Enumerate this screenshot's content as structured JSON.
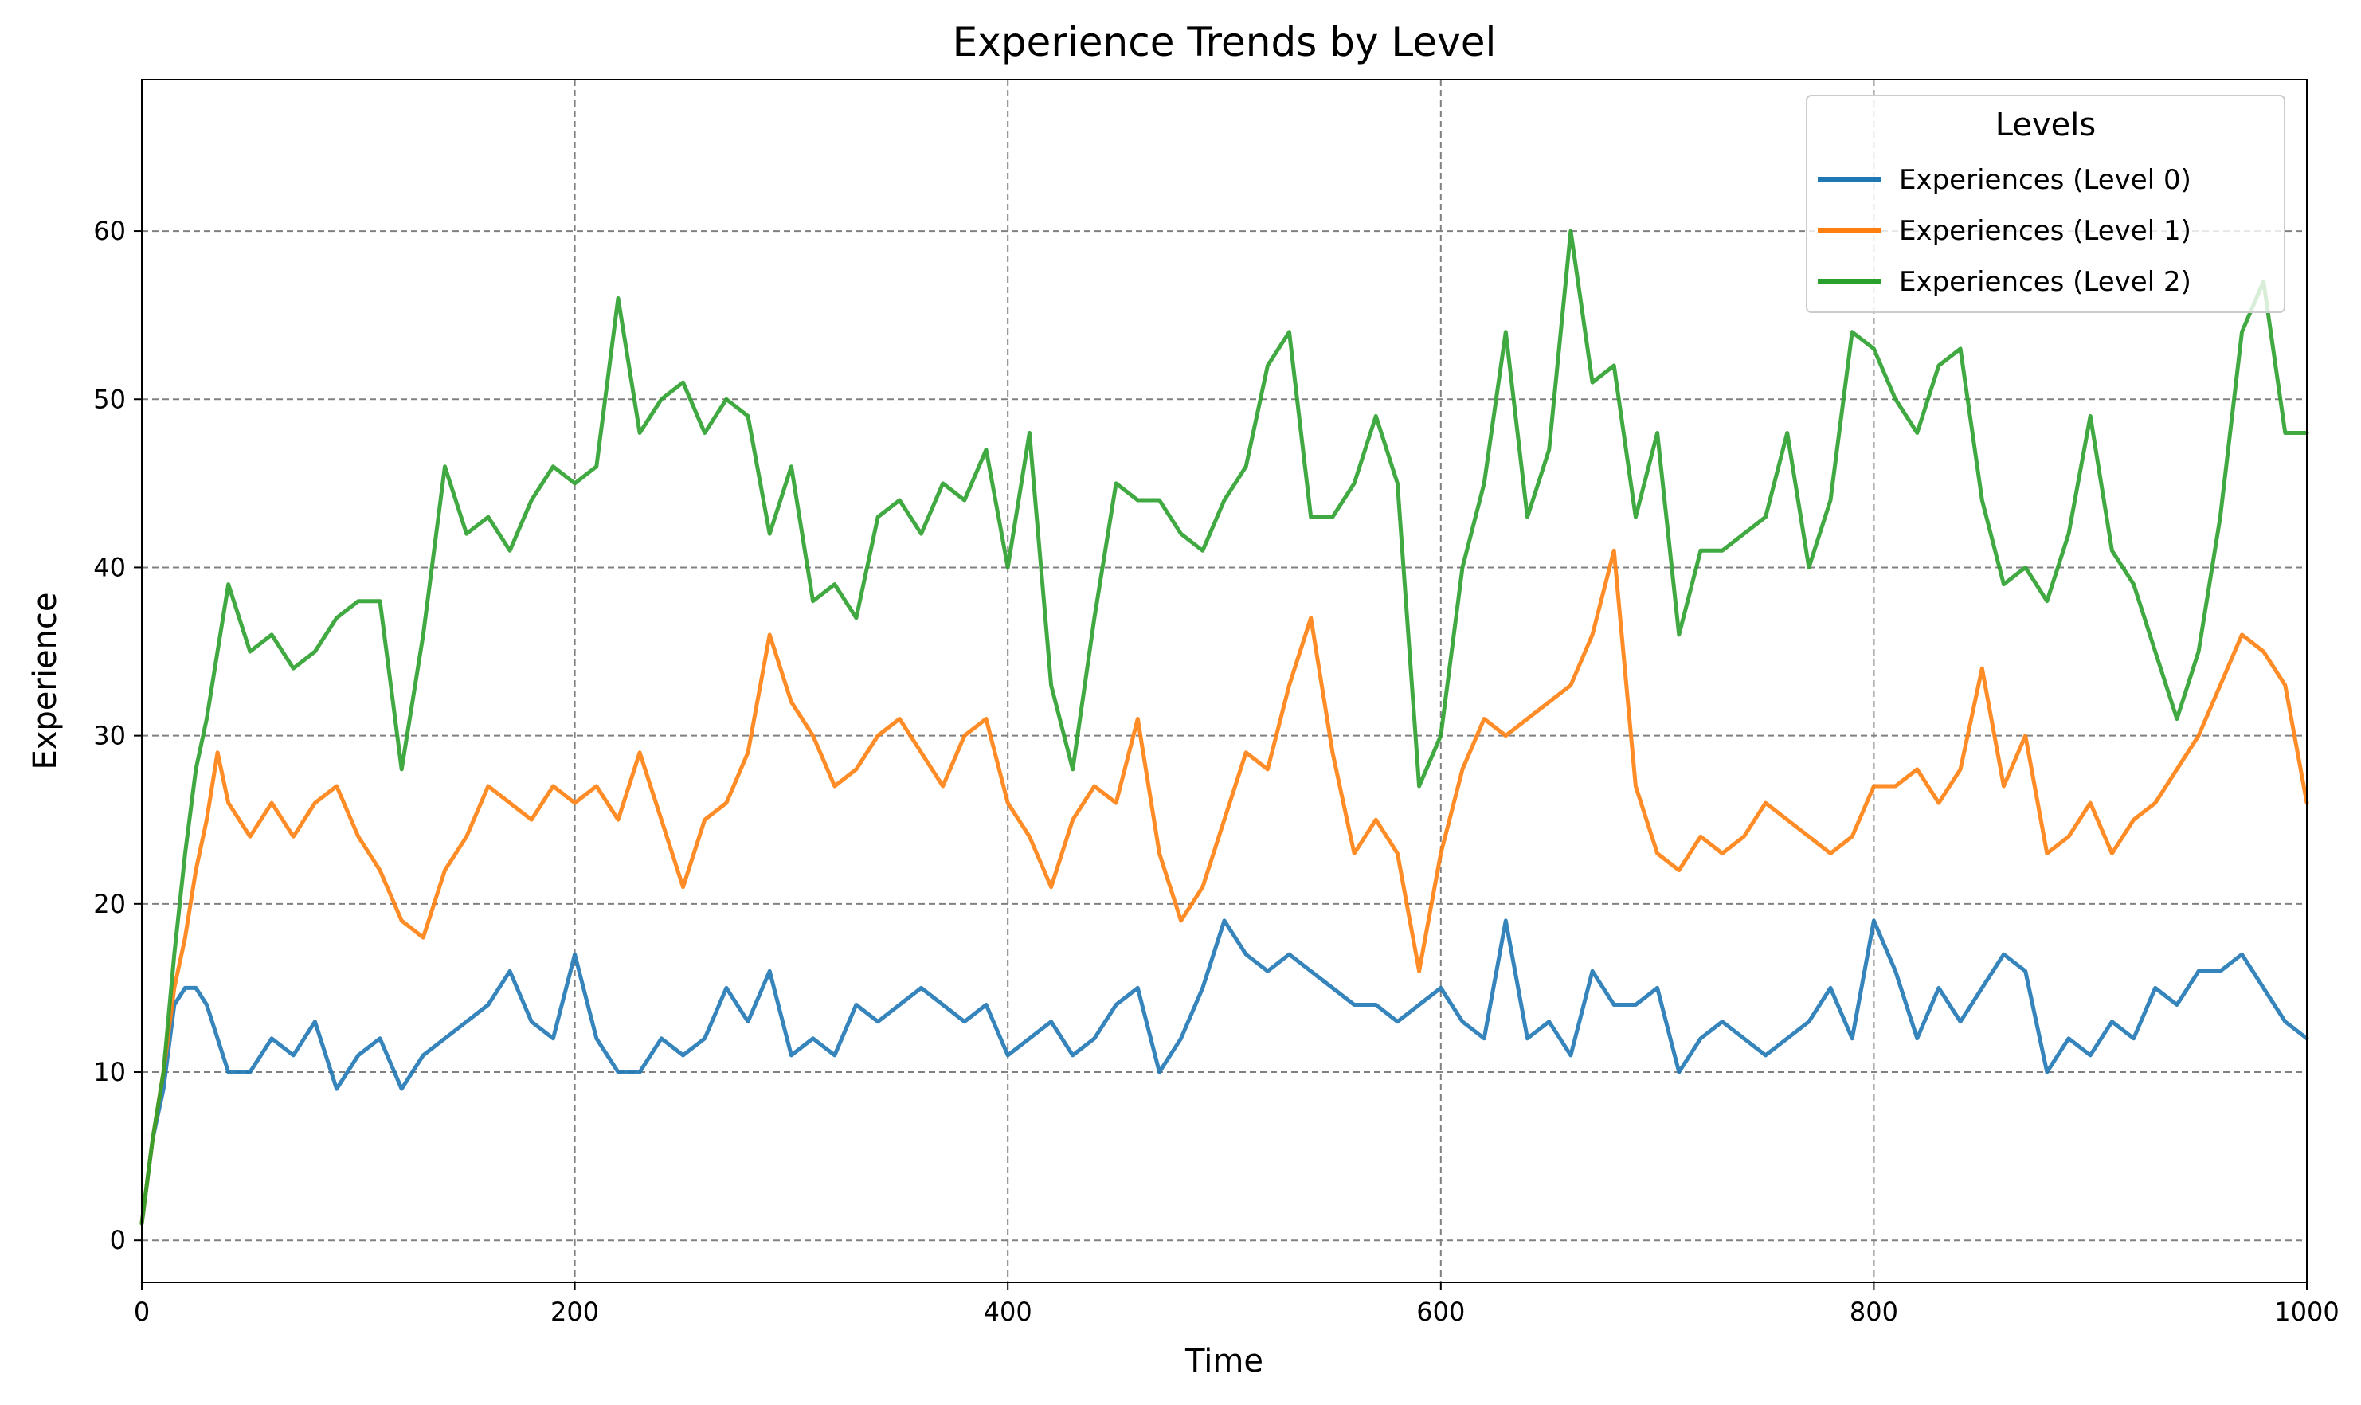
{
  "chart_data": {
    "type": "line",
    "title": "Experience Trends by Level",
    "xlabel": "Time",
    "ylabel": "Experience",
    "xlim": [
      0,
      1000
    ],
    "ylim": [
      -2.5,
      69
    ],
    "xticks": [
      0,
      200,
      400,
      600,
      800,
      1000
    ],
    "yticks": [
      0,
      10,
      20,
      30,
      40,
      50,
      60
    ],
    "grid": true,
    "legend": {
      "title": "Levels",
      "position": "top-right"
    },
    "series": [
      {
        "name": "Experiences (Level 0)",
        "color": "#1f77b4",
        "x": [
          0,
          5,
          10,
          15,
          20,
          25,
          30,
          40,
          50,
          60,
          70,
          80,
          90,
          100,
          110,
          120,
          130,
          140,
          150,
          160,
          170,
          180,
          190,
          200,
          210,
          220,
          230,
          240,
          250,
          260,
          270,
          280,
          290,
          300,
          310,
          320,
          330,
          340,
          350,
          360,
          370,
          380,
          390,
          400,
          410,
          420,
          430,
          440,
          450,
          460,
          470,
          480,
          490,
          500,
          510,
          520,
          530,
          540,
          550,
          560,
          570,
          580,
          590,
          600,
          610,
          620,
          630,
          640,
          650,
          660,
          670,
          680,
          690,
          700,
          710,
          720,
          730,
          740,
          750,
          760,
          770,
          780,
          790,
          800,
          810,
          820,
          830,
          840,
          850,
          860,
          870,
          880,
          890,
          900,
          910,
          920,
          930,
          940,
          950,
          960,
          970,
          980,
          990,
          1000
        ],
        "values": [
          1,
          6,
          9,
          14,
          15,
          15,
          14,
          10,
          10,
          12,
          11,
          13,
          9,
          11,
          12,
          9,
          11,
          12,
          13,
          14,
          16,
          13,
          12,
          17,
          12,
          10,
          10,
          12,
          11,
          12,
          15,
          13,
          16,
          11,
          12,
          11,
          14,
          13,
          14,
          15,
          14,
          13,
          14,
          11,
          12,
          13,
          11,
          12,
          14,
          15,
          10,
          12,
          15,
          19,
          17,
          16,
          17,
          16,
          15,
          14,
          14,
          13,
          14,
          15,
          13,
          12,
          19,
          12,
          13,
          11,
          16,
          14,
          14,
          15,
          10,
          12,
          13,
          12,
          11,
          12,
          13,
          15,
          12,
          19,
          16,
          12,
          15,
          13,
          15,
          17,
          16,
          10,
          12,
          11,
          13,
          12,
          15,
          14,
          16,
          16,
          17,
          15,
          13,
          12
        ]
      },
      {
        "name": "Experiences (Level 1)",
        "color": "#ff7f0e",
        "x": [
          0,
          5,
          10,
          15,
          20,
          25,
          30,
          35,
          40,
          50,
          60,
          70,
          80,
          90,
          100,
          110,
          120,
          130,
          140,
          150,
          160,
          170,
          180,
          190,
          200,
          210,
          220,
          230,
          240,
          250,
          260,
          270,
          280,
          290,
          300,
          310,
          320,
          330,
          340,
          350,
          360,
          370,
          380,
          390,
          400,
          410,
          420,
          430,
          440,
          450,
          460,
          470,
          480,
          490,
          500,
          510,
          520,
          530,
          540,
          550,
          560,
          570,
          580,
          590,
          600,
          610,
          620,
          630,
          640,
          650,
          660,
          670,
          680,
          690,
          700,
          710,
          720,
          730,
          740,
          750,
          760,
          770,
          780,
          790,
          800,
          810,
          820,
          830,
          840,
          850,
          860,
          870,
          880,
          890,
          900,
          910,
          920,
          930,
          940,
          950,
          960,
          970,
          980,
          990,
          1000
        ],
        "values": [
          1,
          6,
          10,
          15,
          18,
          22,
          25,
          29,
          26,
          24,
          26,
          24,
          26,
          27,
          24,
          22,
          19,
          18,
          22,
          24,
          27,
          26,
          25,
          27,
          26,
          27,
          25,
          29,
          25,
          21,
          25,
          26,
          29,
          36,
          32,
          30,
          27,
          28,
          30,
          31,
          29,
          27,
          30,
          31,
          26,
          24,
          21,
          25,
          27,
          26,
          31,
          23,
          19,
          21,
          25,
          29,
          28,
          33,
          37,
          29,
          23,
          25,
          23,
          16,
          23,
          28,
          31,
          30,
          31,
          32,
          33,
          36,
          41,
          27,
          23,
          22,
          24,
          23,
          24,
          26,
          25,
          24,
          23,
          24,
          27,
          27,
          28,
          26,
          28,
          34,
          27,
          30,
          23,
          24,
          26,
          23,
          25,
          26,
          28,
          30,
          33,
          36,
          35,
          33,
          26
        ]
      },
      {
        "name": "Experiences (Level 2)",
        "color": "#2ca02c",
        "x": [
          0,
          5,
          10,
          15,
          20,
          25,
          30,
          35,
          40,
          50,
          60,
          70,
          80,
          90,
          100,
          110,
          120,
          130,
          140,
          150,
          160,
          170,
          180,
          190,
          200,
          210,
          220,
          230,
          240,
          250,
          260,
          270,
          280,
          290,
          300,
          310,
          320,
          330,
          340,
          350,
          360,
          370,
          380,
          390,
          400,
          410,
          420,
          430,
          440,
          450,
          460,
          470,
          480,
          490,
          500,
          510,
          520,
          530,
          540,
          550,
          560,
          570,
          580,
          590,
          600,
          610,
          620,
          630,
          640,
          650,
          660,
          670,
          680,
          690,
          700,
          710,
          720,
          730,
          740,
          750,
          760,
          770,
          780,
          790,
          800,
          810,
          820,
          830,
          840,
          850,
          860,
          870,
          880,
          890,
          900,
          910,
          920,
          930,
          940,
          950,
          960,
          970,
          980,
          990,
          1000
        ],
        "values": [
          1,
          6,
          10,
          17,
          23,
          28,
          31,
          35,
          39,
          35,
          36,
          34,
          35,
          37,
          38,
          38,
          28,
          36,
          46,
          42,
          43,
          41,
          44,
          46,
          45,
          46,
          56,
          48,
          50,
          51,
          48,
          50,
          49,
          42,
          46,
          38,
          39,
          37,
          43,
          44,
          42,
          45,
          44,
          47,
          40,
          48,
          33,
          28,
          37,
          45,
          44,
          44,
          42,
          41,
          44,
          46,
          52,
          54,
          43,
          43,
          45,
          49,
          45,
          27,
          30,
          40,
          45,
          54,
          43,
          47,
          60,
          51,
          52,
          43,
          48,
          36,
          41,
          41,
          42,
          43,
          48,
          40,
          44,
          54,
          53,
          50,
          48,
          52,
          53,
          44,
          39,
          40,
          38,
          42,
          49,
          41,
          39,
          35,
          31,
          35,
          43,
          54,
          57,
          48,
          48
        ]
      }
    ]
  }
}
